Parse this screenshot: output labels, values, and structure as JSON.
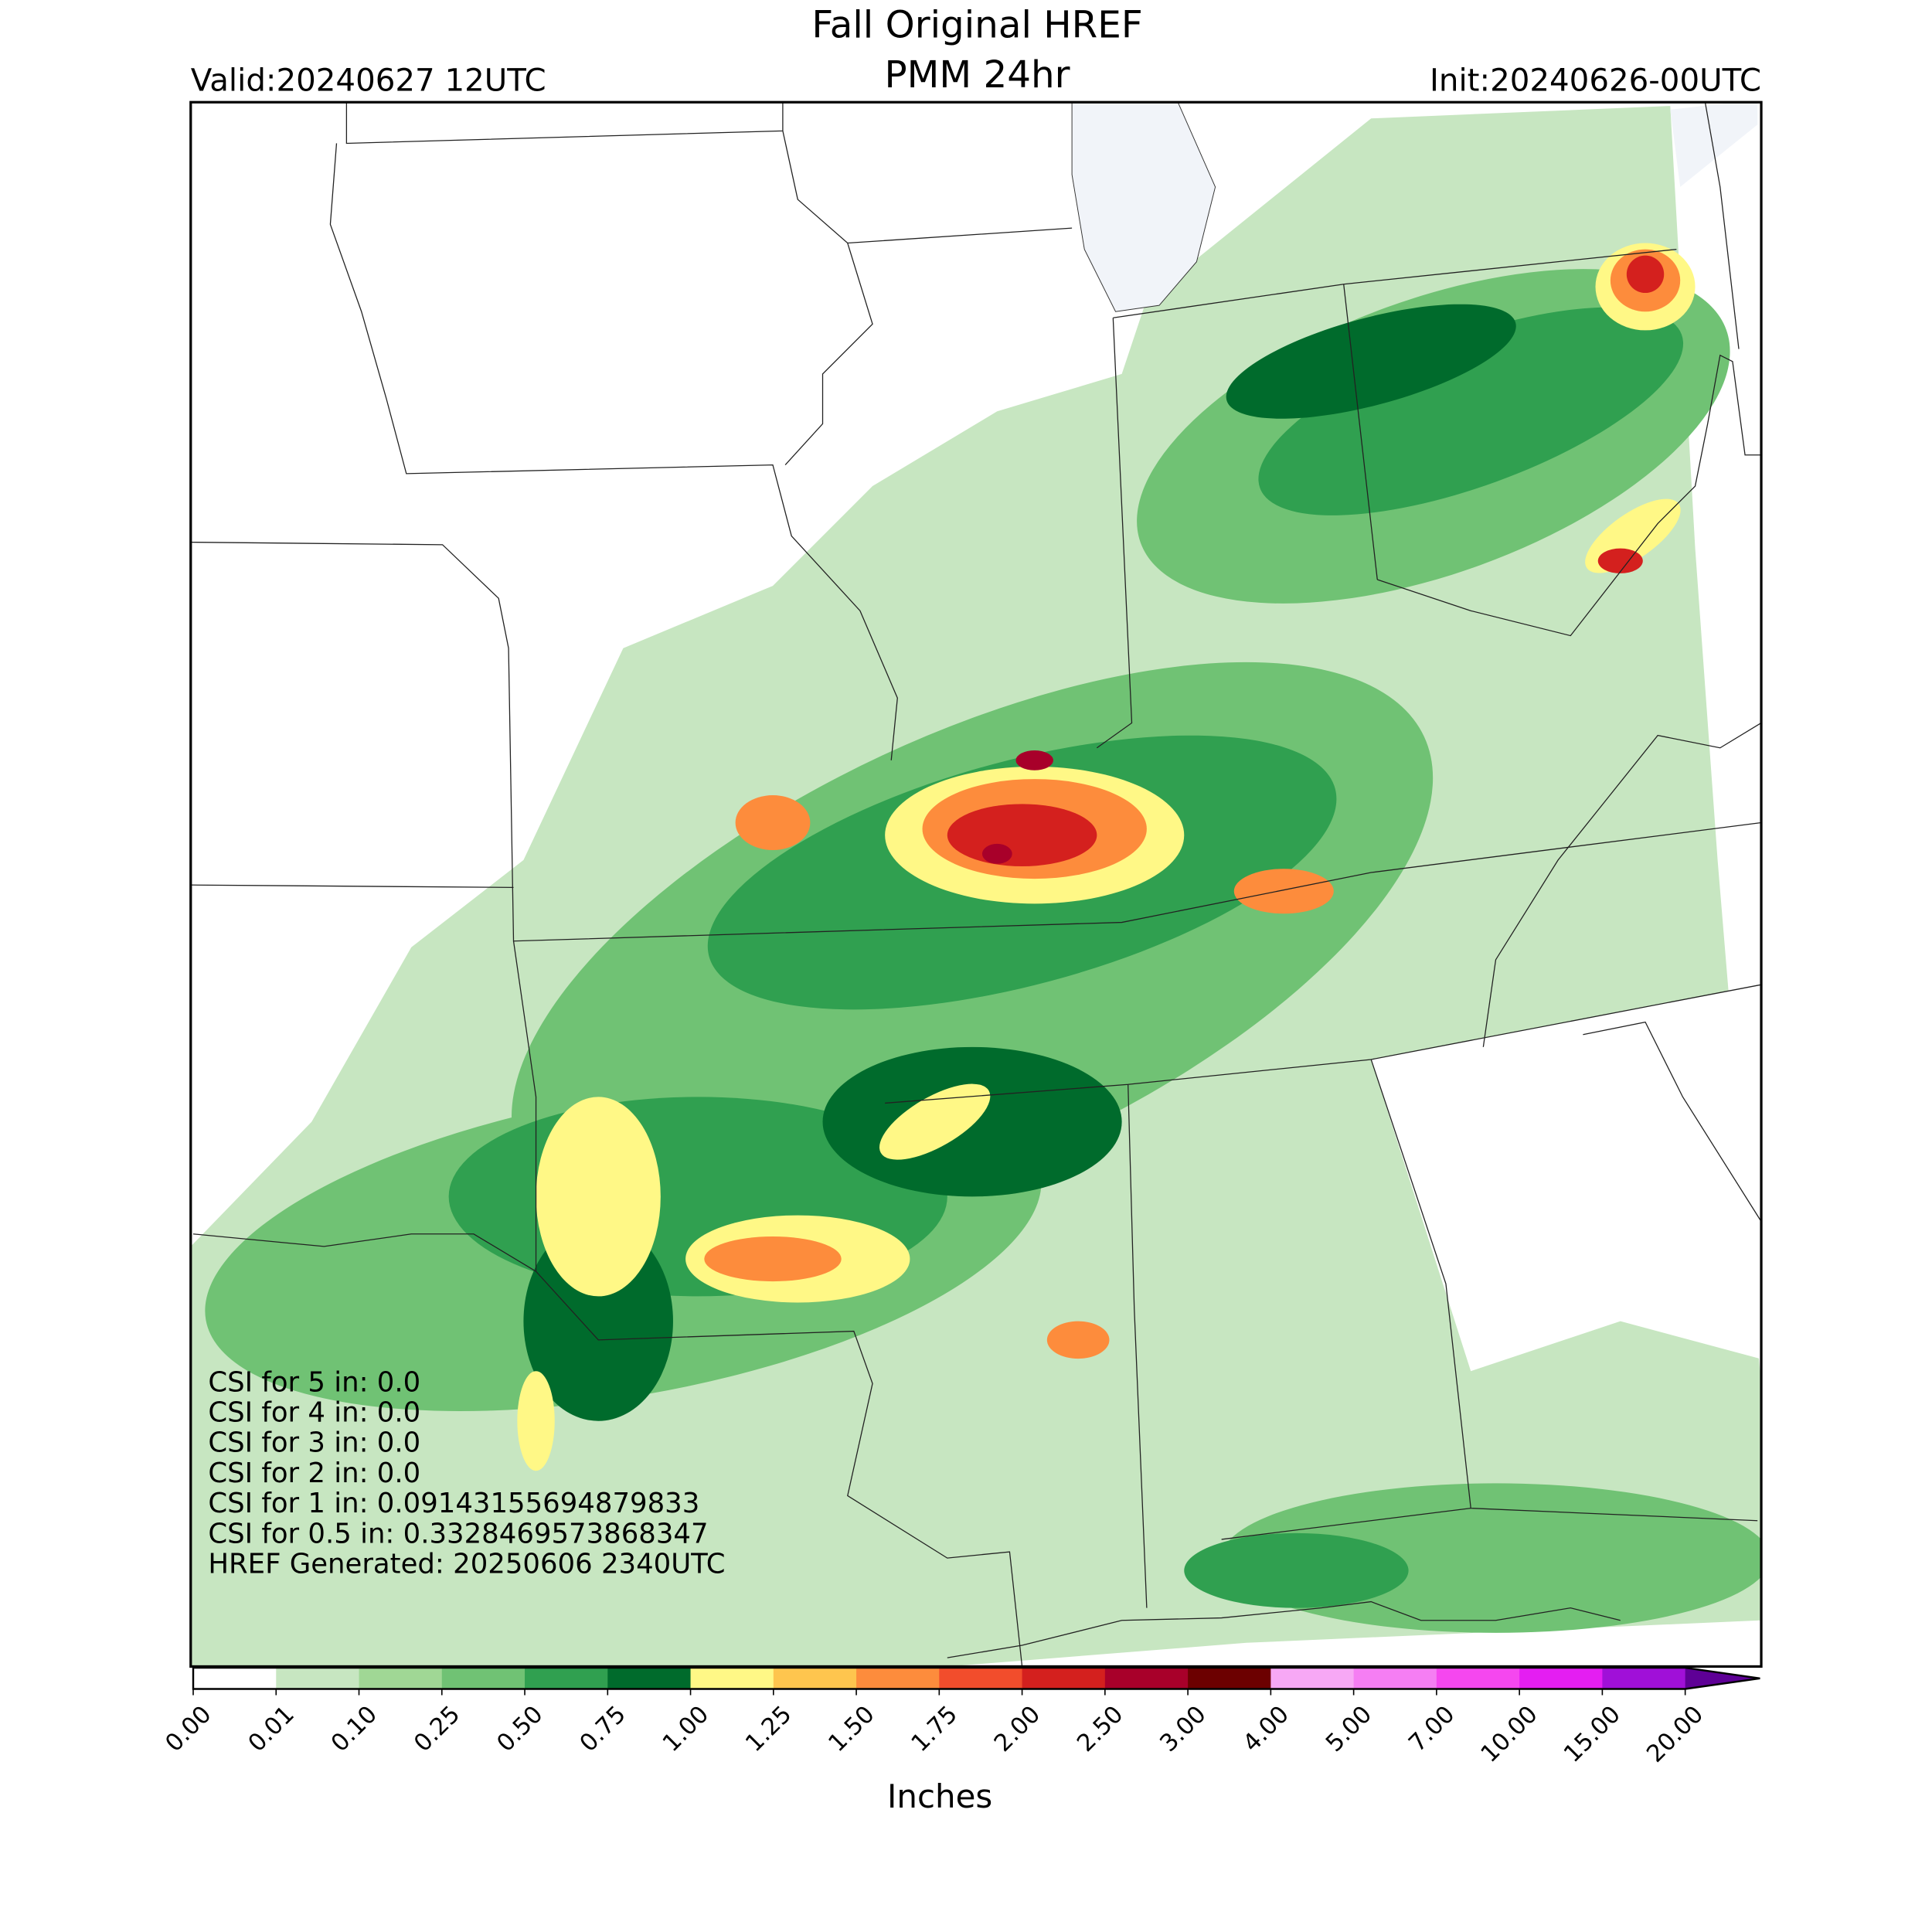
{
  "header": {
    "title_line1": "Fall Original HREF",
    "title_line2": "PMM 24hr",
    "valid": "Valid:20240627 12UTC",
    "init": "Init:20240626-00UTC"
  },
  "annotations": [
    "CSI for 5 in: 0.0",
    "CSI for 4 in: 0.0",
    "CSI for 3 in: 0.0",
    "CSI for 2 in: 0.0",
    "CSI for 1 in: 0.09143155694879833",
    "CSI for 0.5 in: 0.3328469573868347",
    "HREF Generated: 20250606 2340UTC"
  ],
  "colorbar": {
    "label": "Inches",
    "ticks": [
      {
        "value": 0,
        "label": "0.00"
      },
      {
        "value": 0.01,
        "label": "0.01"
      },
      {
        "value": 0.1,
        "label": "0.10"
      },
      {
        "value": 0.25,
        "label": "0.25"
      },
      {
        "value": 0.5,
        "label": "0.50"
      },
      {
        "value": 0.75,
        "label": "0.75"
      },
      {
        "value": 1,
        "label": "1.00"
      },
      {
        "value": 1.25,
        "label": "1.25"
      },
      {
        "value": 1.5,
        "label": "1.50"
      },
      {
        "value": 1.75,
        "label": "1.75"
      },
      {
        "value": 2,
        "label": "2.00"
      },
      {
        "value": 2.5,
        "label": "2.50"
      },
      {
        "value": 3,
        "label": "3.00"
      },
      {
        "value": 4,
        "label": "4.00"
      },
      {
        "value": 5,
        "label": "5.00"
      },
      {
        "value": 7,
        "label": "7.00"
      },
      {
        "value": 10,
        "label": "10.00"
      },
      {
        "value": 15,
        "label": "15.00"
      },
      {
        "value": 20,
        "label": "20.00"
      }
    ],
    "colors": [
      "#ffffff",
      "#c7e6c1",
      "#a0d795",
      "#70c274",
      "#30a050",
      "#006b2c",
      "#fff886",
      "#fec54e",
      "#fd8c3c",
      "#f24d2c",
      "#d4201e",
      "#a8002a",
      "#6c0000",
      "#f7a8f5",
      "#f57ef3",
      "#f547ef",
      "#e41ef2",
      "#a010d8"
    ],
    "extend_color": "#5e0096"
  }
}
